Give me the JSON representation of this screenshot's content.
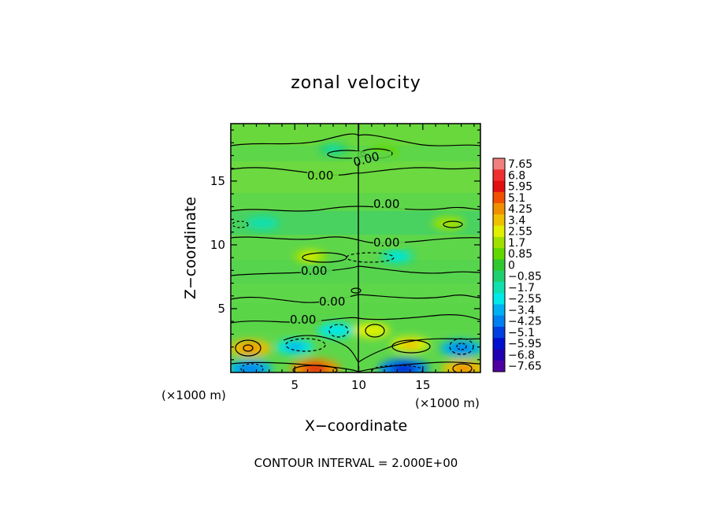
{
  "chart_data": {
    "type": "heatmap",
    "title": "zonal velocity",
    "xlabel": "X−coordinate",
    "ylabel": "Z−coordinate",
    "x_unit": "(×1000 m)",
    "z_unit": "(×1000 m)",
    "xlim": [
      0,
      19.5
    ],
    "ylim": [
      0,
      19.5
    ],
    "x_ticks": [
      5,
      10,
      15
    ],
    "y_ticks": [
      5,
      10,
      15
    ],
    "x_tick_labels": [
      "5",
      "10",
      "15"
    ],
    "y_tick_labels": [
      "5",
      "10",
      "15"
    ],
    "footer": "CONTOUR INTERVAL = 2.000E+00",
    "contour_labels": [
      "0.00",
      "0.00",
      "0.00",
      "0.00",
      "0.00",
      "0.00",
      "0.00",
      "0.00"
    ],
    "colorbar": {
      "labels": [
        "7.65",
        "6.8",
        "5.95",
        "5.1",
        "4.25",
        "3.4",
        "2.55",
        "1.7",
        "0.85",
        "0",
        "−0.85",
        "−1.7",
        "−2.55",
        "−3.4",
        "−4.25",
        "−5.1",
        "−5.95",
        "−6.8",
        "−7.65"
      ],
      "colors": [
        "#f08080",
        "#f03030",
        "#e01010",
        "#f05000",
        "#f09000",
        "#f0c000",
        "#e0f000",
        "#a0e000",
        "#60d800",
        "#30c830",
        "#20d070",
        "#10e0b0",
        "#00e8e8",
        "#00b0f0",
        "#0080f0",
        "#0040e0",
        "#0010d0",
        "#2000b0",
        "#5000a0"
      ]
    },
    "blobs": [
      {
        "x": 6.6,
        "z": 0.3,
        "value": 4.5
      },
      {
        "x": 1.5,
        "z": 0.3,
        "value": -3.5
      },
      {
        "x": 13.5,
        "z": 0.3,
        "value": -4.5
      },
      {
        "x": 18.2,
        "z": 0.3,
        "value": 3.5
      },
      {
        "x": 1.5,
        "z": 1.9,
        "value": 3.2
      },
      {
        "x": 18.0,
        "z": 1.9,
        "value": -3.2
      },
      {
        "x": 5.0,
        "z": 2.0,
        "value": -2.5
      },
      {
        "x": 14.0,
        "z": 2.2,
        "value": 2.6
      },
      {
        "x": 8.2,
        "z": 3.3,
        "value": -2.3
      },
      {
        "x": 11.0,
        "z": 3.3,
        "value": 2.3
      },
      {
        "x": 6.2,
        "z": 9.1,
        "value": 1.8
      },
      {
        "x": 13.0,
        "z": 9.1,
        "value": -1.8
      },
      {
        "x": 2.5,
        "z": 11.7,
        "value": -1.6
      },
      {
        "x": 17.0,
        "z": 11.7,
        "value": 1.6
      },
      {
        "x": 8.0,
        "z": 17.5,
        "value": -1.2
      },
      {
        "x": 12.0,
        "z": 17.3,
        "value": 1.0
      }
    ]
  }
}
